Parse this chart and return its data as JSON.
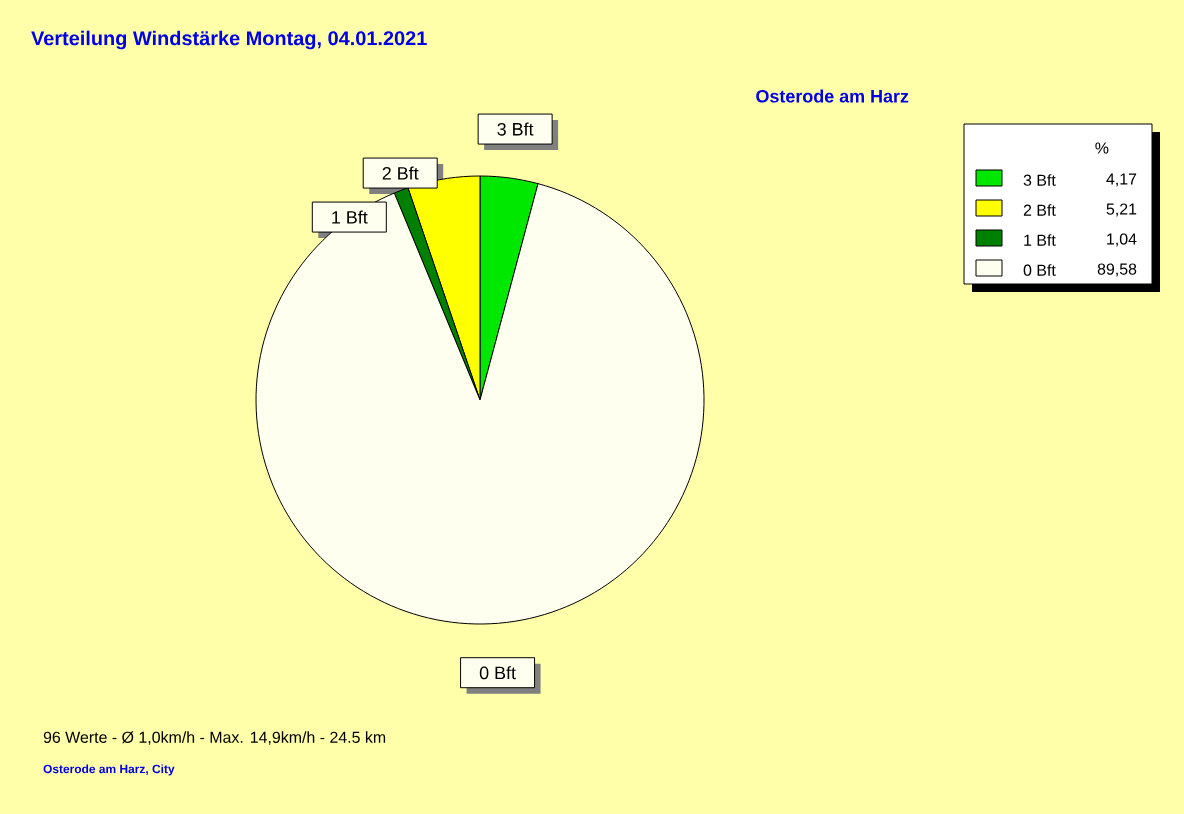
{
  "chart_data": {
    "type": "pie",
    "title": "Verteilung Windstärke  Montag, 04.01.2021",
    "subtitle": "Osterode am Harz",
    "categories": [
      "3 Bft",
      "2 Bft",
      "1 Bft",
      "0 Bft"
    ],
    "values": [
      4.17,
      5.21,
      1.04,
      89.58
    ],
    "value_labels": [
      "4,17",
      "5,21",
      "1,04",
      "89,58"
    ],
    "colors": [
      "#00e800",
      "#ffff00",
      "#008000",
      "#fffff0"
    ],
    "legend": "top right",
    "legend_title": "%",
    "annotations": [
      "96 Werte   -   Ø 1,0km/h  -  Max. 14,9km/h   -   24.5 km",
      "Osterode am Harz, City"
    ]
  }
}
